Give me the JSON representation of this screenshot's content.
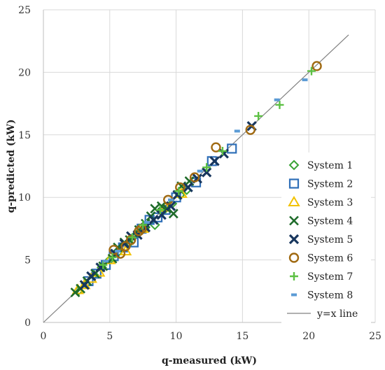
{
  "chart_data": {
    "type": "scatter",
    "title": "",
    "xlabel": "q-measured (kW)",
    "ylabel": "q-predicted (kW)",
    "xlim": [
      0,
      25
    ],
    "ylim": [
      0,
      25
    ],
    "xticks": [
      "0",
      "5",
      "10",
      "15",
      "20",
      "25"
    ],
    "yticks": [
      "0",
      "5",
      "10",
      "15",
      "20",
      "25"
    ],
    "grid": true,
    "legend_position": "right",
    "series": [
      {
        "name": "System 1",
        "marker": "diamond-open",
        "color": "#3aa335",
        "points": [
          [
            2.6,
            2.5
          ],
          [
            3.2,
            3.1
          ],
          [
            3.8,
            3.8
          ],
          [
            4.4,
            4.4
          ],
          [
            5.0,
            5.0
          ],
          [
            5.7,
            5.7
          ],
          [
            6.4,
            6.3
          ],
          [
            7.1,
            7.1
          ],
          [
            7.6,
            7.5
          ],
          [
            8.4,
            7.8
          ],
          [
            9.0,
            8.9
          ],
          [
            9.7,
            9.5
          ],
          [
            10.3,
            10.2
          ],
          [
            10.8,
            10.6
          ]
        ]
      },
      {
        "name": "System 2",
        "marker": "square-open",
        "color": "#2f6fb8",
        "points": [
          [
            3.4,
            3.3
          ],
          [
            4.0,
            3.9
          ],
          [
            4.7,
            4.6
          ],
          [
            5.3,
            5.3
          ],
          [
            6.0,
            6.0
          ],
          [
            6.8,
            6.4
          ],
          [
            7.4,
            7.5
          ],
          [
            8.0,
            8.2
          ],
          [
            8.6,
            8.4
          ],
          [
            9.2,
            9.0
          ],
          [
            10.0,
            10.0
          ],
          [
            11.5,
            11.2
          ],
          [
            12.7,
            12.9
          ],
          [
            14.2,
            13.9
          ]
        ]
      },
      {
        "name": "System 3",
        "marker": "triangle-open",
        "color": "#f2c200",
        "points": [
          [
            2.6,
            2.6
          ],
          [
            3.1,
            3.0
          ],
          [
            3.6,
            3.5
          ],
          [
            4.2,
            4.0
          ],
          [
            5.0,
            5.0
          ],
          [
            6.2,
            5.7
          ],
          [
            7.5,
            7.5
          ],
          [
            9.2,
            9.2
          ],
          [
            10.4,
            10.3
          ]
        ]
      },
      {
        "name": "System 4",
        "marker": "x",
        "color": "#1e6b2a",
        "points": [
          [
            2.4,
            2.4
          ],
          [
            2.8,
            2.7
          ],
          [
            3.3,
            3.3
          ],
          [
            3.9,
            3.9
          ],
          [
            4.5,
            4.5
          ],
          [
            5.2,
            5.1
          ],
          [
            5.6,
            6.0
          ],
          [
            6.1,
            6.4
          ],
          [
            6.5,
            6.6
          ],
          [
            7.2,
            7.4
          ],
          [
            7.7,
            7.9
          ],
          [
            8.1,
            8.5
          ],
          [
            8.4,
            9.1
          ],
          [
            8.9,
            9.3
          ],
          [
            9.3,
            9.1
          ],
          [
            9.8,
            8.7
          ],
          [
            10.4,
            10.9
          ],
          [
            11.0,
            11.3
          ]
        ]
      },
      {
        "name": "System 5",
        "marker": "x-bold",
        "color": "#17365d",
        "points": [
          [
            3.1,
            3.0
          ],
          [
            3.6,
            3.7
          ],
          [
            4.3,
            4.4
          ],
          [
            5.4,
            5.5
          ],
          [
            6.1,
            6.3
          ],
          [
            6.6,
            6.9
          ],
          [
            7.1,
            7.0
          ],
          [
            7.7,
            7.6
          ],
          [
            8.3,
            8.2
          ],
          [
            8.9,
            8.6
          ],
          [
            9.6,
            9.3
          ],
          [
            10.1,
            10.2
          ],
          [
            10.9,
            10.8
          ],
          [
            11.6,
            11.5
          ],
          [
            12.3,
            12.0
          ],
          [
            12.9,
            12.9
          ],
          [
            13.6,
            13.5
          ],
          [
            15.7,
            15.7
          ]
        ]
      },
      {
        "name": "System 6",
        "marker": "circle-open",
        "color": "#a06a12",
        "points": [
          [
            5.3,
            5.8
          ],
          [
            5.8,
            5.5
          ],
          [
            6.2,
            6.1
          ],
          [
            6.6,
            6.6
          ],
          [
            7.2,
            7.3
          ],
          [
            7.4,
            7.5
          ],
          [
            9.4,
            9.8
          ],
          [
            10.3,
            10.8
          ],
          [
            11.4,
            11.6
          ],
          [
            13.0,
            14.0
          ],
          [
            15.6,
            15.4
          ],
          [
            20.6,
            20.5
          ]
        ]
      },
      {
        "name": "System 7",
        "marker": "plus",
        "color": "#5cc043",
        "points": [
          [
            4.5,
            4.6
          ],
          [
            5.2,
            5.2
          ],
          [
            6.7,
            6.8
          ],
          [
            7.5,
            7.8
          ],
          [
            8.8,
            9.0
          ],
          [
            10.2,
            10.5
          ],
          [
            12.3,
            12.4
          ],
          [
            13.5,
            13.7
          ],
          [
            16.2,
            16.5
          ],
          [
            17.8,
            17.4
          ],
          [
            20.2,
            20.1
          ]
        ]
      },
      {
        "name": "System 8",
        "marker": "dash",
        "color": "#5b9bd5",
        "points": [
          [
            4.7,
            4.9
          ],
          [
            5.6,
            5.7
          ],
          [
            7.8,
            8.0
          ],
          [
            9.6,
            9.8
          ],
          [
            11.8,
            12.1
          ],
          [
            14.6,
            15.3
          ],
          [
            17.6,
            17.8
          ],
          [
            19.7,
            19.4
          ]
        ]
      },
      {
        "name": "y=x line",
        "marker": "line",
        "color": "#808080",
        "points": [
          [
            0,
            0
          ],
          [
            23,
            23
          ]
        ]
      }
    ]
  }
}
